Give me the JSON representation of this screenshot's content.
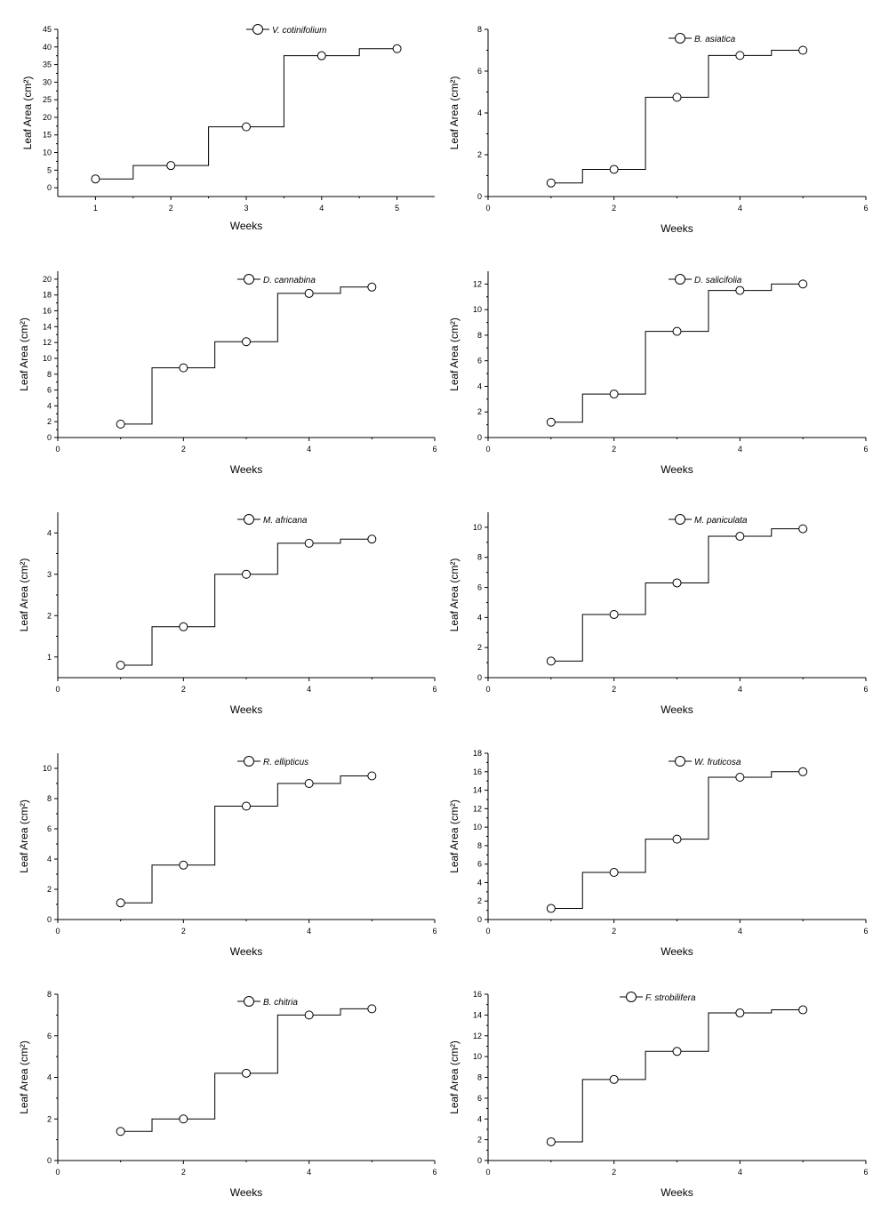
{
  "chart_data": [
    {
      "type": "line",
      "species": "V. cotinifolium",
      "xlabel": "Weeks",
      "ylabel": "Leaf Area (cm²)",
      "xlim": [
        0.5,
        5.5
      ],
      "ylim": [
        -2.5,
        45
      ],
      "xticks": [
        1,
        2,
        3,
        4,
        5
      ],
      "yticks": [
        0,
        5,
        10,
        15,
        20,
        25,
        30,
        35,
        40,
        45
      ],
      "series": [
        {
          "name": "V. cotinifolium",
          "x": [
            1,
            2,
            3,
            4,
            5
          ],
          "y": [
            2.5,
            6.3,
            17.3,
            37.5,
            39.5
          ]
        }
      ]
    },
    {
      "type": "line",
      "species": "B. asiatica",
      "xlabel": "Weeks",
      "ylabel": "Leaf Area (cm²)",
      "xlim": [
        0,
        6
      ],
      "ylim": [
        0,
        8
      ],
      "xticks": [
        0,
        2,
        4,
        6
      ],
      "yticks": [
        0,
        2,
        4,
        6,
        8
      ],
      "series": [
        {
          "name": "B. asiatica",
          "x": [
            1,
            2,
            3,
            4,
            5
          ],
          "y": [
            0.65,
            1.3,
            4.75,
            6.75,
            7.0
          ]
        }
      ]
    },
    {
      "type": "line",
      "species": "D. cannabina",
      "xlabel": "Weeks",
      "ylabel": "Leaf Area (cm²)",
      "xlim": [
        0,
        6
      ],
      "ylim": [
        0,
        21
      ],
      "xticks": [
        0,
        2,
        4,
        6
      ],
      "yticks": [
        0,
        2,
        4,
        6,
        8,
        10,
        12,
        14,
        16,
        18,
        20
      ],
      "series": [
        {
          "name": "D. cannabina",
          "x": [
            1,
            2,
            3,
            4,
            5
          ],
          "y": [
            1.7,
            8.8,
            12.1,
            18.2,
            19.0
          ]
        }
      ]
    },
    {
      "type": "line",
      "species": "D. salicifolia",
      "xlabel": "Weeks",
      "ylabel": "Leaf Area (cm²)",
      "xlim": [
        0,
        6
      ],
      "ylim": [
        0,
        13
      ],
      "xticks": [
        0,
        2,
        4,
        6
      ],
      "yticks": [
        0,
        2,
        4,
        6,
        8,
        10,
        12
      ],
      "series": [
        {
          "name": "D. salicifolia",
          "x": [
            1,
            2,
            3,
            4,
            5
          ],
          "y": [
            1.2,
            3.4,
            8.3,
            11.5,
            12.0
          ]
        }
      ]
    },
    {
      "type": "line",
      "species": "M. africana",
      "xlabel": "Weeks",
      "ylabel": "Leaf Area (cm²)",
      "xlim": [
        0,
        6
      ],
      "ylim": [
        0.5,
        4.5
      ],
      "xticks": [
        0,
        2,
        4,
        6
      ],
      "yticks": [
        1,
        2,
        3,
        4
      ],
      "series": [
        {
          "name": "M. africana",
          "x": [
            1,
            2,
            3,
            4,
            5
          ],
          "y": [
            0.8,
            1.73,
            3.0,
            3.75,
            3.85
          ]
        }
      ]
    },
    {
      "type": "line",
      "species": "M. paniculata",
      "xlabel": "Weeks",
      "ylabel": "Leaf Area (cm²)",
      "xlim": [
        0,
        6
      ],
      "ylim": [
        0,
        11
      ],
      "xticks": [
        0,
        2,
        4,
        6
      ],
      "yticks": [
        0,
        2,
        4,
        6,
        8,
        10
      ],
      "series": [
        {
          "name": "M. paniculata",
          "x": [
            1,
            2,
            3,
            4,
            5
          ],
          "y": [
            1.1,
            4.2,
            6.3,
            9.4,
            9.9
          ]
        }
      ]
    },
    {
      "type": "line",
      "species": "R. ellipticus",
      "xlabel": "Weeks",
      "ylabel": "Leaf Area (cm²)",
      "xlim": [
        0,
        6
      ],
      "ylim": [
        0,
        11
      ],
      "xticks": [
        0,
        2,
        4,
        6
      ],
      "yticks": [
        0,
        2,
        4,
        6,
        8,
        10
      ],
      "series": [
        {
          "name": "R. ellipticus",
          "x": [
            1,
            2,
            3,
            4,
            5
          ],
          "y": [
            1.1,
            3.6,
            7.5,
            9.0,
            9.5
          ]
        }
      ]
    },
    {
      "type": "line",
      "species": "W. fruticosa",
      "xlabel": "Weeks",
      "ylabel": "Leaf Area (cm²)",
      "xlim": [
        0,
        6
      ],
      "ylim": [
        0,
        18
      ],
      "xticks": [
        0,
        2,
        4,
        6
      ],
      "yticks": [
        0,
        2,
        4,
        6,
        8,
        10,
        12,
        14,
        16,
        18
      ],
      "series": [
        {
          "name": "W. fruticosa",
          "x": [
            1,
            2,
            3,
            4,
            5
          ],
          "y": [
            1.2,
            5.1,
            8.7,
            15.4,
            16.0
          ]
        }
      ]
    },
    {
      "type": "line",
      "species": "B. chitria",
      "xlabel": "Weeks",
      "ylabel": "Leaf Area (cm²)",
      "xlim": [
        0,
        6
      ],
      "ylim": [
        0,
        8
      ],
      "xticks": [
        0,
        2,
        4,
        6
      ],
      "yticks": [
        0,
        2,
        4,
        6,
        8
      ],
      "series": [
        {
          "name": "B. chitria",
          "x": [
            1,
            2,
            3,
            4,
            5
          ],
          "y": [
            1.4,
            2.0,
            4.2,
            7.0,
            7.3
          ]
        }
      ]
    },
    {
      "type": "line",
      "species": "F. strobilifera",
      "xlabel": "Weeks",
      "ylabel": "Leaf Area (cm²)",
      "xlim": [
        0,
        6
      ],
      "ylim": [
        0,
        16
      ],
      "xticks": [
        0,
        2,
        4,
        6
      ],
      "yticks": [
        0,
        2,
        4,
        6,
        8,
        10,
        12,
        14,
        16
      ],
      "series": [
        {
          "name": "F. strobilifera",
          "x": [
            1,
            2,
            3,
            4,
            5
          ],
          "y": [
            1.8,
            7.8,
            10.5,
            14.2,
            14.5
          ]
        }
      ]
    }
  ]
}
